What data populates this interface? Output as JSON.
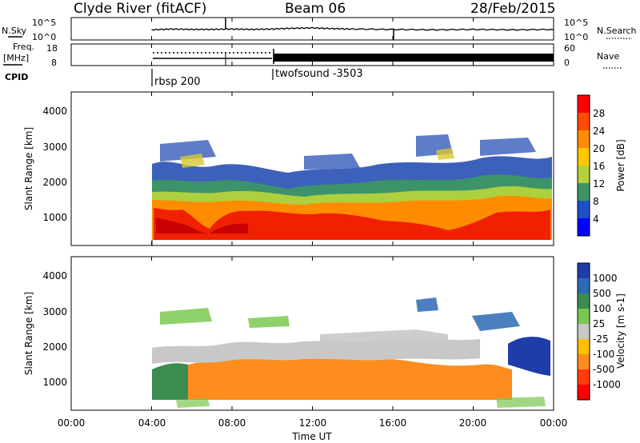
{
  "header": {
    "station": "Clyde River (fitACF)",
    "beam": "Beam 06",
    "date": "28/Feb/2015"
  },
  "noise_panel": {
    "left_label": "N.Sky",
    "right_label": "N.Search",
    "left_ticks": [
      "10^5",
      "10^0"
    ],
    "right_ticks": [
      "10^5",
      "10^0"
    ]
  },
  "freq_panel": {
    "left_label_1": "Freq.",
    "left_label_2": "[MHz]",
    "left_ticks": [
      "18",
      "8"
    ],
    "right_label": "Nave",
    "right_ticks": [
      "60",
      "0"
    ]
  },
  "cpid": {
    "label": "CPID",
    "segments": [
      {
        "name": "rbsp 200",
        "start_hour": 4
      },
      {
        "name": "twofsound -3503",
        "start_hour": 10
      }
    ]
  },
  "x_axis": {
    "label": "Time UT",
    "ticks": [
      "00:00",
      "04:00",
      "08:00",
      "12:00",
      "16:00",
      "20:00",
      "00:00"
    ],
    "tick_hours": [
      0,
      4,
      8,
      12,
      16,
      20,
      24
    ]
  },
  "power_panel": {
    "ylabel": "Slant Range [km]",
    "yticks": [
      "1000",
      "2000",
      "3000",
      "4000"
    ],
    "colorbar_label": "Power [dB]",
    "colorbar_ticks": [
      "28",
      "24",
      "20",
      "16",
      "12",
      "8",
      "4"
    ],
    "colorbar_colors": [
      "#ff0000",
      "#ff4a00",
      "#ff8c00",
      "#ffc800",
      "#b4d23c",
      "#3c9664",
      "#1e50c8",
      "#0000ff"
    ]
  },
  "velocity_panel": {
    "ylabel": "Slant Range [km]",
    "yticks": [
      "1000",
      "2000",
      "3000",
      "4000"
    ],
    "colorbar_label": "Velocity [m s-1]",
    "colorbar_ticks": [
      "1000",
      "500",
      "100",
      "25",
      "-25",
      "-100",
      "-500",
      "-1000"
    ],
    "colorbar_colors": [
      "#1e3caa",
      "#2d69b4",
      "#3c8c50",
      "#7ac850",
      "#c8c8c8",
      "#ffc000",
      "#ff8c1e",
      "#ff3c0a",
      "#ff0000"
    ]
  },
  "chart_data": [
    {
      "type": "line",
      "title": "Clyde River (fitACF) Beam 06 28/Feb/2015",
      "series": [
        {
          "name": "N.Sky",
          "x_hours": [
            4,
            5,
            6,
            7,
            8,
            9,
            10,
            11,
            12,
            13,
            14,
            16,
            18,
            20,
            22,
            24
          ],
          "values_log10": [
            2.2,
            2.4,
            2.3,
            2.3,
            2.4,
            2.3,
            2.4,
            2.6,
            2.7,
            2.5,
            2.4,
            2.3,
            2.2,
            2.3,
            2.2,
            2.3
          ]
        },
        {
          "name": "N.Search",
          "x_hours": [
            4,
            6,
            8,
            10,
            12,
            14,
            16,
            18,
            20,
            22,
            24
          ],
          "values_log10": [
            2.0,
            2.0,
            2.0,
            2.0,
            2.0,
            2.0,
            2.0,
            2.0,
            2.0,
            2.0,
            2.0
          ]
        }
      ],
      "xlim": [
        0,
        24
      ],
      "ylim": [
        0,
        5
      ]
    },
    {
      "type": "line",
      "series": [
        {
          "name": "Freq. [MHz]",
          "x_hours": [
            4,
            10,
            10,
            24
          ],
          "values": [
            11,
            11,
            11,
            11
          ]
        },
        {
          "name": "Nave",
          "x_hours": [
            4,
            10,
            10,
            24
          ],
          "values": [
            25,
            25,
            20,
            20
          ]
        }
      ],
      "xlim": [
        0,
        24
      ],
      "ylim": [
        8,
        18
      ]
    },
    {
      "type": "heatmap",
      "title": "Power [dB]",
      "xlabel": "Time UT",
      "ylabel": "Slant Range [km]",
      "xlim": [
        0,
        24
      ],
      "ylim": [
        180,
        4500
      ],
      "zlim": [
        0,
        30
      ],
      "bands": [
        {
          "t": [
            4,
            24
          ],
          "r": [
            550,
            1200
          ],
          "z": 27
        },
        {
          "t": [
            4,
            24
          ],
          "r": [
            1200,
            1450
          ],
          "z": 21
        },
        {
          "t": [
            4,
            24
          ],
          "r": [
            1450,
            1650
          ],
          "z": 15
        },
        {
          "t": [
            4,
            24
          ],
          "r": [
            1650,
            1850
          ],
          "z": 10
        },
        {
          "t": [
            4,
            24
          ],
          "r": [
            1850,
            2150
          ],
          "z": 6
        }
      ]
    },
    {
      "type": "heatmap",
      "title": "Velocity [m s-1]",
      "xlabel": "Time UT",
      "ylabel": "Slant Range [km]",
      "xlim": [
        0,
        24
      ],
      "ylim": [
        180,
        4500
      ],
      "zlim": [
        -1000,
        1000
      ],
      "bands": [
        {
          "t": [
            4,
            7
          ],
          "r": [
            450,
            1450
          ],
          "z": 60
        },
        {
          "t": [
            7,
            20
          ],
          "r": [
            450,
            1550
          ],
          "z": -150
        },
        {
          "t": [
            4,
            20
          ],
          "r": [
            1450,
            1900
          ],
          "z": 0
        },
        {
          "t": [
            20,
            24
          ],
          "r": [
            1100,
            2400
          ],
          "z": 700
        }
      ]
    }
  ]
}
